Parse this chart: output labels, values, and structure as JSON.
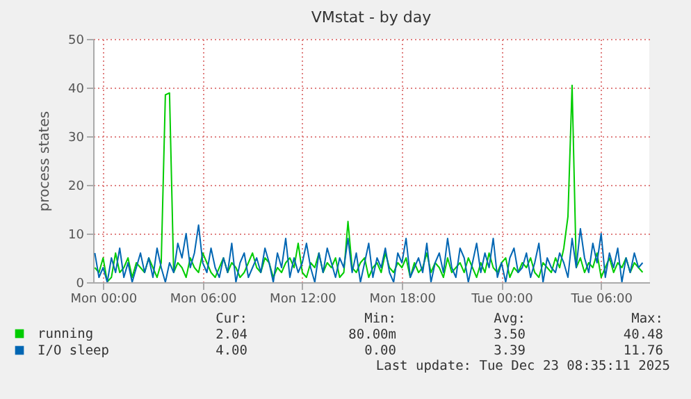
{
  "chart_data": {
    "type": "line",
    "title": "VMstat - by day",
    "ylabel": "process states",
    "xlim": [
      "2025-12-21T23:24",
      "2025-12-23T08:54"
    ],
    "xticks": [
      {
        "value": "2025-12-22T00:00",
        "label": "Mon 00:00"
      },
      {
        "value": "2025-12-22T06:00",
        "label": "Mon 06:00"
      },
      {
        "value": "2025-12-22T12:00",
        "label": "Mon 12:00"
      },
      {
        "value": "2025-12-22T18:00",
        "label": "Mon 18:00"
      },
      {
        "value": "2025-12-23T00:00",
        "label": "Tue 00:00"
      },
      {
        "value": "2025-12-23T06:00",
        "label": "Tue 06:00"
      }
    ],
    "ylim": [
      0,
      50
    ],
    "yticks": [
      0,
      10,
      20,
      30,
      40,
      50
    ],
    "grid": true,
    "legend": "bottom",
    "x": [
      "2025-12-21T23:30",
      "2025-12-21T23:45",
      "2025-12-22T00:00",
      "2025-12-22T00:15",
      "2025-12-22T00:30",
      "2025-12-22T00:45",
      "2025-12-22T01:00",
      "2025-12-22T01:15",
      "2025-12-22T01:30",
      "2025-12-22T01:45",
      "2025-12-22T02:00",
      "2025-12-22T02:15",
      "2025-12-22T02:30",
      "2025-12-22T02:45",
      "2025-12-22T03:00",
      "2025-12-22T03:15",
      "2025-12-22T03:30",
      "2025-12-22T03:45",
      "2025-12-22T04:00",
      "2025-12-22T04:15",
      "2025-12-22T04:30",
      "2025-12-22T04:45",
      "2025-12-22T05:00",
      "2025-12-22T05:15",
      "2025-12-22T05:30",
      "2025-12-22T05:45",
      "2025-12-22T06:00",
      "2025-12-22T06:15",
      "2025-12-22T06:30",
      "2025-12-22T06:45",
      "2025-12-22T07:00",
      "2025-12-22T07:15",
      "2025-12-22T07:30",
      "2025-12-22T07:45",
      "2025-12-22T08:00",
      "2025-12-22T08:15",
      "2025-12-22T08:30",
      "2025-12-22T08:45",
      "2025-12-22T09:00",
      "2025-12-22T09:15",
      "2025-12-22T09:30",
      "2025-12-22T09:45",
      "2025-12-22T10:00",
      "2025-12-22T10:15",
      "2025-12-22T10:30",
      "2025-12-22T10:45",
      "2025-12-22T11:00",
      "2025-12-22T11:15",
      "2025-12-22T11:30",
      "2025-12-22T11:45",
      "2025-12-22T12:00",
      "2025-12-22T12:15",
      "2025-12-22T12:30",
      "2025-12-22T12:45",
      "2025-12-22T13:00",
      "2025-12-22T13:15",
      "2025-12-22T13:30",
      "2025-12-22T13:45",
      "2025-12-22T14:00",
      "2025-12-22T14:15",
      "2025-12-22T14:30",
      "2025-12-22T14:45",
      "2025-12-22T15:00",
      "2025-12-22T15:15",
      "2025-12-22T15:30",
      "2025-12-22T15:45",
      "2025-12-22T16:00",
      "2025-12-22T16:15",
      "2025-12-22T16:30",
      "2025-12-22T16:45",
      "2025-12-22T17:00",
      "2025-12-22T17:15",
      "2025-12-22T17:30",
      "2025-12-22T17:45",
      "2025-12-22T18:00",
      "2025-12-22T18:15",
      "2025-12-22T18:30",
      "2025-12-22T18:45",
      "2025-12-22T19:00",
      "2025-12-22T19:15",
      "2025-12-22T19:30",
      "2025-12-22T19:45",
      "2025-12-22T20:00",
      "2025-12-22T20:15",
      "2025-12-22T20:30",
      "2025-12-22T20:45",
      "2025-12-22T21:00",
      "2025-12-22T21:15",
      "2025-12-22T21:30",
      "2025-12-22T21:45",
      "2025-12-22T22:00",
      "2025-12-22T22:15",
      "2025-12-22T22:30",
      "2025-12-22T22:45",
      "2025-12-22T23:00",
      "2025-12-22T23:15",
      "2025-12-22T23:30",
      "2025-12-22T23:45",
      "2025-12-23T00:00",
      "2025-12-23T00:15",
      "2025-12-23T00:30",
      "2025-12-23T00:45",
      "2025-12-23T01:00",
      "2025-12-23T01:15",
      "2025-12-23T01:30",
      "2025-12-23T01:45",
      "2025-12-23T02:00",
      "2025-12-23T02:15",
      "2025-12-23T02:30",
      "2025-12-23T02:45",
      "2025-12-23T03:00",
      "2025-12-23T03:15",
      "2025-12-23T03:30",
      "2025-12-23T03:45",
      "2025-12-23T04:00",
      "2025-12-23T04:15",
      "2025-12-23T04:30",
      "2025-12-23T04:45",
      "2025-12-23T05:00",
      "2025-12-23T05:15",
      "2025-12-23T05:30",
      "2025-12-23T05:45",
      "2025-12-23T06:00",
      "2025-12-23T06:15",
      "2025-12-23T06:30",
      "2025-12-23T06:45",
      "2025-12-23T07:00",
      "2025-12-23T07:15",
      "2025-12-23T07:30",
      "2025-12-23T07:45",
      "2025-12-23T08:00",
      "2025-12-23T08:15",
      "2025-12-23T08:30"
    ],
    "series": [
      {
        "name": "running",
        "color": "#00cc00",
        "values": [
          3,
          2,
          5,
          0.08,
          1,
          6,
          2,
          3,
          5,
          1,
          4,
          3,
          2,
          5,
          3,
          1,
          4,
          38.5,
          38.9,
          2,
          4,
          3,
          1,
          5,
          3,
          2,
          6,
          4,
          2,
          1,
          3,
          5,
          2,
          4,
          3,
          1,
          2,
          4,
          6,
          3,
          2,
          5,
          4,
          1,
          3,
          2,
          4,
          5,
          3,
          8,
          2,
          1,
          4,
          3,
          6,
          2,
          4,
          3,
          5,
          1,
          2,
          12.5,
          3,
          2,
          4,
          5,
          1,
          3,
          4,
          2,
          6,
          3,
          2,
          4,
          3,
          5,
          1,
          4,
          2,
          3,
          6,
          2,
          4,
          3,
          1,
          5,
          2,
          3,
          4,
          2,
          5,
          3,
          1,
          4,
          2,
          6,
          3,
          2,
          4,
          5,
          1,
          3,
          2,
          4,
          3,
          5,
          2,
          1,
          4,
          3,
          2,
          5,
          3,
          7,
          13.5,
          40.48,
          3,
          5,
          2,
          4,
          3,
          6,
          1,
          3,
          5,
          2,
          4,
          3,
          5,
          2,
          4,
          3,
          2.04
        ]
      },
      {
        "name": "I/O sleep",
        "color": "#0066b3",
        "values": [
          6,
          1,
          3,
          0,
          5,
          2,
          7,
          1,
          4,
          0,
          3,
          6,
          2,
          5,
          1,
          7,
          3,
          0,
          4,
          2,
          8,
          5,
          10,
          3,
          6,
          11.76,
          4,
          2,
          7,
          3,
          1,
          5,
          2,
          8,
          0,
          4,
          6,
          1,
          3,
          5,
          2,
          7,
          4,
          0,
          6,
          3,
          9,
          1,
          5,
          2,
          4,
          8,
          3,
          0,
          6,
          2,
          7,
          4,
          1,
          5,
          3,
          9,
          2,
          6,
          0,
          4,
          8,
          1,
          5,
          3,
          7,
          2,
          0,
          6,
          4,
          9,
          1,
          3,
          5,
          2,
          8,
          0,
          4,
          6,
          2,
          9,
          3,
          1,
          7,
          5,
          0,
          4,
          8,
          2,
          6,
          3,
          9,
          1,
          4,
          0,
          5,
          7,
          2,
          3,
          6,
          1,
          4,
          8,
          0,
          5,
          3,
          2,
          6,
          4,
          1,
          9,
          3,
          11,
          5,
          2,
          8,
          4,
          10,
          1,
          6,
          3,
          7,
          0,
          5,
          2,
          6,
          3,
          4
        ]
      }
    ],
    "annotations": [
      "Cur:",
      "Min:",
      "Avg:",
      "Max:",
      "2.04",
      "80.00m",
      "3.50",
      "40.48",
      "4.00",
      "0.00",
      "3.39",
      "11.76",
      "Last update: Tue Dec 23 08:35:11 2025"
    ]
  }
}
